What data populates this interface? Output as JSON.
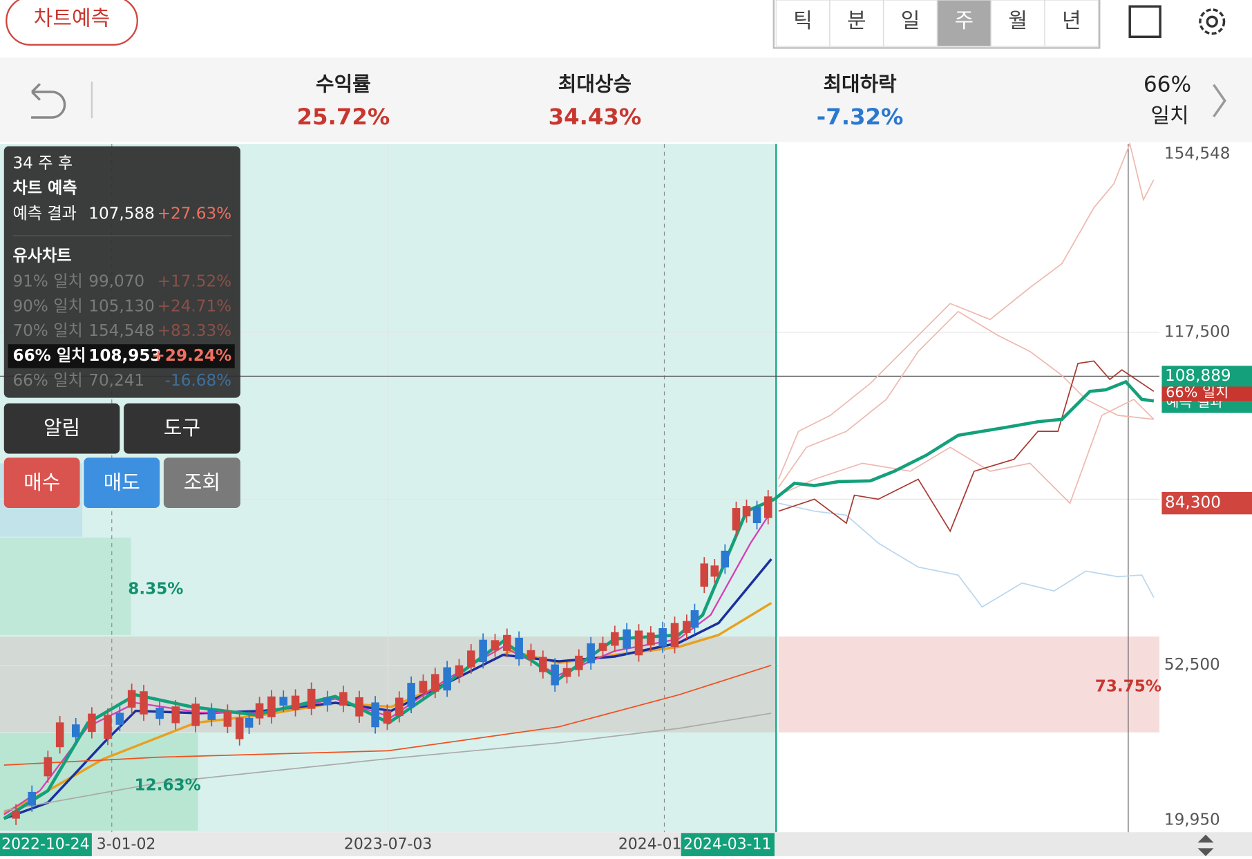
{
  "header": {
    "predict_button": "차트예측",
    "tabs": [
      "틱",
      "분",
      "일",
      "주",
      "월",
      "년"
    ]
  },
  "stats": [
    {
      "label": "수익률",
      "value": "25.72%"
    },
    {
      "label": "최대상승",
      "value": "34.43%"
    },
    {
      "label": "최대하락",
      "value": "-7.32%"
    }
  ],
  "match": {
    "value": "66%",
    "label": "일치"
  },
  "tooltip": {
    "period": "34 주 후",
    "title": "차트 예측",
    "result_label": "예측 결과",
    "result_price": "107,588",
    "result_change": "+27.63%",
    "similar_title": "유사차트",
    "similar": [
      {
        "match": "91% 일치",
        "price": "99,070",
        "change": "+17.52%"
      },
      {
        "match": "90% 일치",
        "price": "105,130",
        "change": "+24.71%"
      },
      {
        "match": "70% 일치",
        "price": "154,548",
        "change": "+83.33%"
      },
      {
        "match": "66% 일치",
        "price": "108,953",
        "change": "+29.24%"
      },
      {
        "match": "66% 일치",
        "price": "70,241",
        "change": "-16.68%"
      }
    ]
  },
  "buttons": [
    "알림",
    "도구",
    "매수",
    "매도",
    "조회"
  ],
  "y_axis": [
    "154,548",
    "117,500",
    "52,500",
    "19,950"
  ],
  "price_tags": [
    "108,889",
    "84,300"
  ],
  "legend_tags": [
    "66% 일치",
    "예측 결과"
  ],
  "zones": [
    "8.35%",
    "12.63%",
    "73.75%"
  ],
  "x_axis": [
    "2022-10-24",
    "3-01-02",
    "2023-07-03",
    "2024-01",
    "2024-03-11"
  ]
}
